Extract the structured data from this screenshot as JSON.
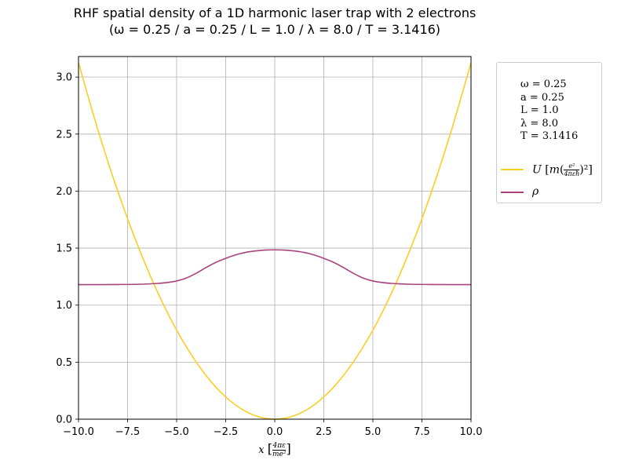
{
  "chart_data": {
    "type": "line",
    "title": "RHF spatial density of a 1D harmonic laser trap with 2 electrons",
    "subtitle": "(ω = 0.25 / a = 0.25 / L = 1.0 / λ = 8.0 / T = 3.1416)",
    "xlabel": "x [4πε / me²]",
    "ylabel": "",
    "xlim": [
      -10,
      10
    ],
    "ylim": [
      0,
      3.18
    ],
    "xticks": [
      -10.0,
      -7.5,
      -5.0,
      -2.5,
      0.0,
      2.5,
      5.0,
      7.5,
      10.0
    ],
    "xtick_labels": [
      "−10.0",
      "−7.5",
      "−5.0",
      "−2.5",
      "0.0",
      "2.5",
      "5.0",
      "7.5",
      "10.0"
    ],
    "yticks": [
      0.0,
      0.5,
      1.0,
      1.5,
      2.0,
      2.5,
      3.0
    ],
    "ytick_labels": [
      "0.0",
      "0.5",
      "1.0",
      "1.5",
      "2.0",
      "2.5",
      "3.0"
    ],
    "grid": true,
    "legend_position": "outside-right",
    "legend_params": [
      "ω = 0.25",
      "a = 0.25",
      "L = 1.0",
      "λ = 8.0",
      "T = 3.1416"
    ],
    "series": [
      {
        "name": "U [m(e²/4πεħ)²]",
        "color": "#fccd25",
        "x": [
          -10,
          -9,
          -8,
          -7,
          -6,
          -5,
          -4,
          -3,
          -2,
          -1,
          0,
          1,
          2,
          3,
          4,
          5,
          6,
          7,
          8,
          9,
          10
        ],
        "y": [
          3.125,
          2.531,
          2.0,
          1.531,
          1.125,
          0.781,
          0.5,
          0.281,
          0.125,
          0.031,
          0.0,
          0.031,
          0.125,
          0.281,
          0.5,
          0.781,
          1.125,
          1.531,
          2.0,
          2.531,
          3.125
        ]
      },
      {
        "name": "ρ",
        "color": "#a8437e",
        "x": [
          -10,
          -9,
          -8,
          -7,
          -6,
          -5.5,
          -5,
          -4.5,
          -4,
          -3.5,
          -3,
          -2.5,
          -2,
          -1.5,
          -1,
          -0.5,
          0,
          0.5,
          1,
          1.5,
          2,
          2.5,
          3,
          3.5,
          4,
          4.5,
          5,
          5.5,
          6,
          7,
          8,
          9,
          10
        ],
        "y": [
          1.18,
          1.18,
          1.181,
          1.183,
          1.19,
          1.198,
          1.212,
          1.238,
          1.28,
          1.33,
          1.375,
          1.41,
          1.44,
          1.462,
          1.475,
          1.483,
          1.485,
          1.483,
          1.475,
          1.462,
          1.44,
          1.41,
          1.375,
          1.33,
          1.28,
          1.238,
          1.212,
          1.198,
          1.19,
          1.183,
          1.181,
          1.18,
          1.18
        ]
      }
    ]
  }
}
